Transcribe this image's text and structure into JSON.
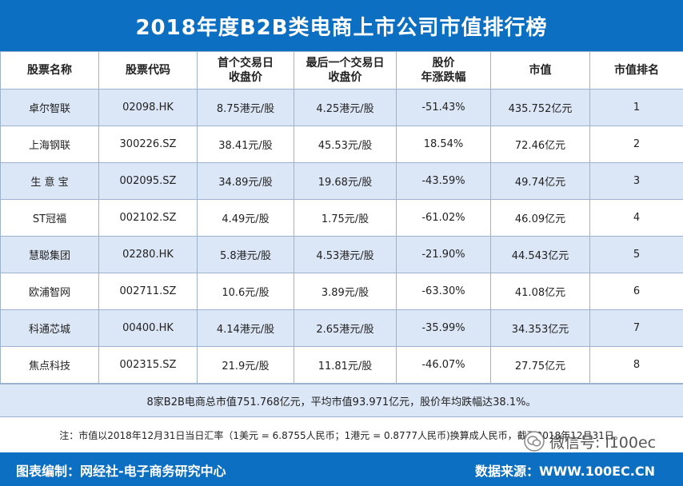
{
  "title": "2018年度B2B类电商上市公司市值排行榜",
  "headers": [
    [
      "股票名称"
    ],
    [
      "股票代码"
    ],
    [
      "首个交易日",
      "收盘价"
    ],
    [
      "最后一个交易日",
      "收盘价"
    ],
    [
      "股价",
      "年涨跌幅"
    ],
    [
      "市值"
    ],
    [
      "市值排名"
    ]
  ],
  "rows": [
    [
      "卓尔智联",
      "02098.HK",
      "8.75港元/股",
      "4.25港元/股",
      "-51.43%",
      "435.752亿元",
      "1"
    ],
    [
      "上海钢联",
      "300226.SZ",
      "38.41元/股",
      "45.53元/股",
      "18.54%",
      "72.46亿元",
      "2"
    ],
    [
      "生 意 宝",
      "002095.SZ",
      "34.89元/股",
      "19.68元/股",
      "-43.59%",
      "49.74亿元",
      "3"
    ],
    [
      "ST冠福",
      "002102.SZ",
      "4.49元/股",
      "1.75元/股",
      "-61.02%",
      "46.09亿元",
      "4"
    ],
    [
      "慧聪集团",
      "02280.HK",
      "5.8港元/股",
      "4.53港元/股",
      "-21.90%",
      "44.543亿元",
      "5"
    ],
    [
      "欧浦智网",
      "002711.SZ",
      "10.6元/股",
      "3.89元/股",
      "-63.30%",
      "41.08亿元",
      "6"
    ],
    [
      "科通芯城",
      "00400.HK",
      "4.14港元/股",
      "2.65港元/股",
      "-35.99%",
      "34.353亿元",
      "7"
    ],
    [
      "焦点科技",
      "002315.SZ",
      "21.9元/股",
      "11.81元/股",
      "-46.07%",
      "27.75亿元",
      "8"
    ]
  ],
  "summary": "8家B2B电商总市值751.768亿元，平均市值93.971亿元，股价年均跌幅达38.1%。",
  "note": "注：市值以2018年12月31日当日汇率（1美元 = 6.8755人民币；1港元 = 0.8777人民币)换算成人民币，截至2018年12月31日。",
  "footer": {
    "editor": "图表编制：网经社-电子商务研究中心",
    "source": "数据来源：WWW.100EC.CN"
  },
  "watermark": "微信号: i100ec",
  "colors": {
    "header_blue": "#0d6fc2",
    "row_shade": "#dbe6f6",
    "border": "#9bb3cf"
  }
}
